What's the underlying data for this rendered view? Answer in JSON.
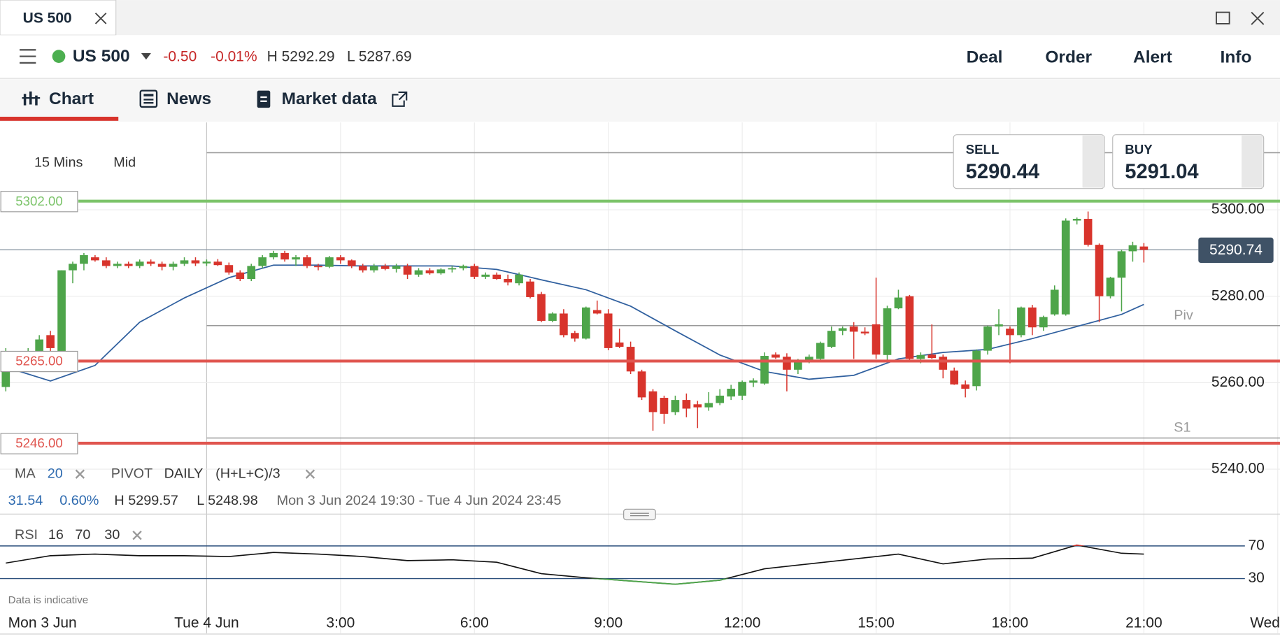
{
  "window_tab": {
    "title": "US 500"
  },
  "instrument": {
    "name": "US 500",
    "change": "-0.50",
    "change_pct": "-0.01%",
    "high": "H 5292.29",
    "low": "L 5287.69"
  },
  "actions": [
    "Deal",
    "Order",
    "Alert",
    "Info"
  ],
  "tabs": [
    "Chart",
    "News",
    "Market data"
  ],
  "chart_controls": {
    "interval": "15 Mins",
    "price_type": "Mid"
  },
  "quote": {
    "sell_label": "SELL",
    "sell": "5290.44",
    "buy_label": "BUY",
    "buy": "5291.04"
  },
  "indicators": {
    "ma_label": "MA",
    "ma_period": "20",
    "pivot_label": "PIVOT",
    "pivot_period": "DAILY",
    "pivot_formula": "(H+L+C)/3"
  },
  "stats": {
    "change": "31.54",
    "change_pct": "0.60%",
    "high": "H 5299.57",
    "low": "L 5248.98",
    "range": "Mon 3 Jun 2024 19:30 - Tue 4 Jun 2024 23:45"
  },
  "rsi_header": {
    "label": "RSI",
    "period": "16",
    "upper": "70",
    "lower": "30"
  },
  "footnote": "Data is indicative",
  "chart_data": {
    "type": "candlestick",
    "up_color": "#4ea54a",
    "down_color": "#d8342c",
    "xlim": [
      -4.63,
      24.05
    ],
    "xticks": [
      {
        "value": 0,
        "label": "Tue 4 Jun"
      },
      {
        "value": 3,
        "label": "3:00"
      },
      {
        "value": 6,
        "label": "6:00"
      },
      {
        "value": 9,
        "label": "9:00"
      },
      {
        "value": 12,
        "label": "12:00"
      },
      {
        "value": 15,
        "label": "15:00"
      },
      {
        "value": 18,
        "label": "18:00"
      },
      {
        "value": 21,
        "label": "21:00"
      },
      {
        "value": 24,
        "label": "Wed"
      }
    ],
    "left_date_label": "Mon 3 Jun",
    "ylim": [
      5229.6,
      5320.2
    ],
    "yticks": [
      {
        "value": 5240,
        "label": "5240.00"
      },
      {
        "value": 5260,
        "label": "5260.00"
      },
      {
        "value": 5280,
        "label": "5280.00"
      },
      {
        "value": 5300,
        "label": "5300.00"
      }
    ],
    "grid": true,
    "levels": [
      {
        "value": 5302,
        "label": "5302.00",
        "color": "#7cc46a"
      },
      {
        "value": 5265,
        "label": "5265.00",
        "color": "#e0554f"
      },
      {
        "value": 5246,
        "label": "5246.00",
        "color": "#e0554f"
      }
    ],
    "pivot_lines": [
      {
        "value": 5313.2
      },
      {
        "value": 5273.2,
        "label": "Piv"
      },
      {
        "value": 5247.2,
        "label": "S1"
      }
    ],
    "last_price": {
      "value": 5290.74,
      "label": "5290.74"
    },
    "candles": [
      {
        "t": -4.5,
        "o": 5259,
        "h": 5268,
        "l": 5258,
        "c": 5265
      },
      {
        "t": -4.25,
        "o": 5265,
        "h": 5267,
        "l": 5264,
        "c": 5265.5
      },
      {
        "t": -4,
        "o": 5265.5,
        "h": 5268,
        "l": 5264,
        "c": 5267
      },
      {
        "t": -3.75,
        "o": 5267,
        "h": 5271,
        "l": 5266,
        "c": 5270
      },
      {
        "t": -3.5,
        "o": 5271,
        "h": 5272,
        "l": 5266,
        "c": 5268
      },
      {
        "t": -3.25,
        "o": 5266,
        "h": 5286,
        "l": 5265,
        "c": 5286
      },
      {
        "t": -3,
        "o": 5286,
        "h": 5288,
        "l": 5283,
        "c": 5287.5
      },
      {
        "t": -2.75,
        "o": 5287.5,
        "h": 5290,
        "l": 5286,
        "c": 5289.5
      },
      {
        "t": -2.5,
        "o": 5289,
        "h": 5289.5,
        "l": 5288,
        "c": 5288.3
      },
      {
        "t": -2.25,
        "o": 5288.3,
        "h": 5289,
        "l": 5286.5,
        "c": 5287
      },
      {
        "t": -2,
        "o": 5287,
        "h": 5288,
        "l": 5286.5,
        "c": 5287.5
      },
      {
        "t": -1.75,
        "o": 5287.5,
        "h": 5288,
        "l": 5286.5,
        "c": 5287
      },
      {
        "t": -1.5,
        "o": 5287,
        "h": 5288.5,
        "l": 5286.5,
        "c": 5288
      },
      {
        "t": -1.25,
        "o": 5288,
        "h": 5288.5,
        "l": 5287,
        "c": 5287.5
      },
      {
        "t": -1,
        "o": 5287.5,
        "h": 5288,
        "l": 5286,
        "c": 5286.8
      },
      {
        "t": -0.75,
        "o": 5286.8,
        "h": 5288,
        "l": 5286,
        "c": 5287.5
      },
      {
        "t": -0.5,
        "o": 5287.5,
        "h": 5289,
        "l": 5287,
        "c": 5288.3
      },
      {
        "t": -0.25,
        "o": 5288.3,
        "h": 5289,
        "l": 5287,
        "c": 5287.6
      },
      {
        "t": 0,
        "o": 5287.6,
        "h": 5288.5,
        "l": 5287,
        "c": 5288
      },
      {
        "t": 0.25,
        "o": 5288,
        "h": 5288.6,
        "l": 5287,
        "c": 5287.2
      },
      {
        "t": 0.5,
        "o": 5287.2,
        "h": 5287.8,
        "l": 5285,
        "c": 5285.5
      },
      {
        "t": 0.75,
        "o": 5285.5,
        "h": 5286,
        "l": 5283.5,
        "c": 5284
      },
      {
        "t": 1,
        "o": 5284,
        "h": 5287.5,
        "l": 5283.5,
        "c": 5287
      },
      {
        "t": 1.25,
        "o": 5287,
        "h": 5289.5,
        "l": 5286.5,
        "c": 5289
      },
      {
        "t": 1.5,
        "o": 5289,
        "h": 5290.5,
        "l": 5288.5,
        "c": 5290
      },
      {
        "t": 1.75,
        "o": 5290,
        "h": 5290.5,
        "l": 5288,
        "c": 5288.5
      },
      {
        "t": 2,
        "o": 5288.5,
        "h": 5289.5,
        "l": 5287,
        "c": 5289
      },
      {
        "t": 2.25,
        "o": 5289,
        "h": 5289.5,
        "l": 5286.5,
        "c": 5287
      },
      {
        "t": 2.5,
        "o": 5287,
        "h": 5287.5,
        "l": 5286,
        "c": 5286.8
      },
      {
        "t": 2.75,
        "o": 5286.8,
        "h": 5289.3,
        "l": 5286.5,
        "c": 5289
      },
      {
        "t": 3,
        "o": 5289,
        "h": 5289.5,
        "l": 5287.5,
        "c": 5288.3
      },
      {
        "t": 3.25,
        "o": 5288.3,
        "h": 5288.5,
        "l": 5286.5,
        "c": 5287
      },
      {
        "t": 3.5,
        "o": 5287,
        "h": 5287.5,
        "l": 5285.5,
        "c": 5286
      },
      {
        "t": 3.75,
        "o": 5286,
        "h": 5287.5,
        "l": 5285.5,
        "c": 5287
      },
      {
        "t": 4,
        "o": 5287,
        "h": 5287.5,
        "l": 5286,
        "c": 5286.3
      },
      {
        "t": 4.25,
        "o": 5286.3,
        "h": 5287.5,
        "l": 5285.5,
        "c": 5287
      },
      {
        "t": 4.5,
        "o": 5287,
        "h": 5287.5,
        "l": 5284,
        "c": 5285
      },
      {
        "t": 4.75,
        "o": 5285,
        "h": 5286.5,
        "l": 5284.5,
        "c": 5286
      },
      {
        "t": 5,
        "o": 5286,
        "h": 5286.5,
        "l": 5285,
        "c": 5285.3
      },
      {
        "t": 5.25,
        "o": 5285.3,
        "h": 5286.5,
        "l": 5285,
        "c": 5286.2
      },
      {
        "t": 5.5,
        "o": 5286.2,
        "h": 5287,
        "l": 5285.5,
        "c": 5286.5
      },
      {
        "t": 5.75,
        "o": 5286.5,
        "h": 5287.3,
        "l": 5286,
        "c": 5287
      },
      {
        "t": 6,
        "o": 5287,
        "h": 5287.5,
        "l": 5284,
        "c": 5284.5
      },
      {
        "t": 6.25,
        "o": 5284.5,
        "h": 5285.5,
        "l": 5284,
        "c": 5285
      },
      {
        "t": 6.5,
        "o": 5285,
        "h": 5285.5,
        "l": 5283.8,
        "c": 5284
      },
      {
        "t": 6.75,
        "o": 5284,
        "h": 5285,
        "l": 5282.5,
        "c": 5283.2
      },
      {
        "t": 7,
        "o": 5283,
        "h": 5285.5,
        "l": 5282.5,
        "c": 5285
      },
      {
        "t": 7.25,
        "o": 5283.4,
        "h": 5284,
        "l": 5279.5,
        "c": 5279.8
      },
      {
        "t": 7.5,
        "o": 5280.5,
        "h": 5281,
        "l": 5274,
        "c": 5274.3
      },
      {
        "t": 7.75,
        "o": 5274.3,
        "h": 5276.3,
        "l": 5274,
        "c": 5276
      },
      {
        "t": 8,
        "o": 5276,
        "h": 5277,
        "l": 5270.5,
        "c": 5271
      },
      {
        "t": 8.25,
        "o": 5271.5,
        "h": 5272,
        "l": 5269.5,
        "c": 5270.2
      },
      {
        "t": 8.5,
        "o": 5270.2,
        "h": 5277.6,
        "l": 5270,
        "c": 5277.4
      },
      {
        "t": 8.75,
        "o": 5276.8,
        "h": 5279,
        "l": 5275.8,
        "c": 5276
      },
      {
        "t": 9,
        "o": 5276,
        "h": 5277,
        "l": 5267.5,
        "c": 5268
      },
      {
        "t": 9.25,
        "o": 5269.3,
        "h": 5272.5,
        "l": 5268,
        "c": 5268.3
      },
      {
        "t": 9.5,
        "o": 5268.3,
        "h": 5269.5,
        "l": 5262,
        "c": 5262.6
      },
      {
        "t": 9.75,
        "o": 5262.6,
        "h": 5263,
        "l": 5256,
        "c": 5256.6
      },
      {
        "t": 10,
        "o": 5258,
        "h": 5258.5,
        "l": 5248.9,
        "c": 5253.2
      },
      {
        "t": 10.25,
        "o": 5256.5,
        "h": 5257,
        "l": 5250.5,
        "c": 5252.8
      },
      {
        "t": 10.5,
        "o": 5253.2,
        "h": 5257,
        "l": 5252.5,
        "c": 5256
      },
      {
        "t": 10.75,
        "o": 5256,
        "h": 5257.5,
        "l": 5252,
        "c": 5254
      },
      {
        "t": 11,
        "o": 5255,
        "h": 5255.8,
        "l": 5249.5,
        "c": 5254.3
      },
      {
        "t": 11.25,
        "o": 5254.3,
        "h": 5257.8,
        "l": 5253.5,
        "c": 5255.3
      },
      {
        "t": 11.5,
        "o": 5255.3,
        "h": 5258.5,
        "l": 5254.8,
        "c": 5257
      },
      {
        "t": 11.75,
        "o": 5256.8,
        "h": 5259.5,
        "l": 5256,
        "c": 5258.6
      },
      {
        "t": 12,
        "o": 5257,
        "h": 5260.5,
        "l": 5256,
        "c": 5260.2
      },
      {
        "t": 12.25,
        "o": 5260,
        "h": 5261,
        "l": 5259,
        "c": 5260.5
      },
      {
        "t": 12.5,
        "o": 5259.8,
        "h": 5267,
        "l": 5259.5,
        "c": 5266.2
      },
      {
        "t": 12.75,
        "o": 5266.5,
        "h": 5267,
        "l": 5265.5,
        "c": 5265.8
      },
      {
        "t": 13,
        "o": 5266,
        "h": 5266.8,
        "l": 5258,
        "c": 5263
      },
      {
        "t": 13.25,
        "o": 5263,
        "h": 5265.5,
        "l": 5262,
        "c": 5265
      },
      {
        "t": 13.5,
        "o": 5265,
        "h": 5266.5,
        "l": 5264.5,
        "c": 5266
      },
      {
        "t": 13.75,
        "o": 5265.5,
        "h": 5269.5,
        "l": 5265,
        "c": 5269.2
      },
      {
        "t": 14,
        "o": 5268.3,
        "h": 5273,
        "l": 5268,
        "c": 5272
      },
      {
        "t": 14.25,
        "o": 5272,
        "h": 5273,
        "l": 5271,
        "c": 5272.6
      },
      {
        "t": 14.5,
        "o": 5273,
        "h": 5274,
        "l": 5265.5,
        "c": 5271.8
      },
      {
        "t": 14.75,
        "o": 5271.8,
        "h": 5272.8,
        "l": 5271,
        "c": 5271.4
      },
      {
        "t": 15,
        "o": 5273.5,
        "h": 5284.3,
        "l": 5265.5,
        "c": 5266.5
      },
      {
        "t": 15.25,
        "o": 5266.4,
        "h": 5277.8,
        "l": 5265,
        "c": 5277.2
      },
      {
        "t": 15.5,
        "o": 5277.2,
        "h": 5281.5,
        "l": 5277,
        "c": 5279.7
      },
      {
        "t": 15.75,
        "o": 5280,
        "h": 5280.3,
        "l": 5265,
        "c": 5265.5
      },
      {
        "t": 16,
        "o": 5265.5,
        "h": 5267,
        "l": 5264.5,
        "c": 5266.4
      },
      {
        "t": 16.25,
        "o": 5266.5,
        "h": 5273.5,
        "l": 5265.5,
        "c": 5265.7
      },
      {
        "t": 16.5,
        "o": 5266,
        "h": 5266.5,
        "l": 5261,
        "c": 5263
      },
      {
        "t": 16.75,
        "o": 5262.8,
        "h": 5263.5,
        "l": 5259.5,
        "c": 5259.6
      },
      {
        "t": 17,
        "o": 5259.6,
        "h": 5260.5,
        "l": 5256.6,
        "c": 5258.6
      },
      {
        "t": 17.25,
        "o": 5259.2,
        "h": 5267.7,
        "l": 5258.2,
        "c": 5267.4
      },
      {
        "t": 17.5,
        "o": 5267.4,
        "h": 5273.2,
        "l": 5266.5,
        "c": 5273
      },
      {
        "t": 17.75,
        "o": 5273,
        "h": 5277,
        "l": 5271,
        "c": 5273.5
      },
      {
        "t": 18,
        "o": 5272.5,
        "h": 5273,
        "l": 5264.5,
        "c": 5271
      },
      {
        "t": 18.25,
        "o": 5271,
        "h": 5277.6,
        "l": 5270.5,
        "c": 5277.4
      },
      {
        "t": 18.5,
        "o": 5277.4,
        "h": 5278,
        "l": 5271,
        "c": 5272.8
      },
      {
        "t": 18.75,
        "o": 5272.8,
        "h": 5275.5,
        "l": 5272,
        "c": 5275.2
      },
      {
        "t": 19,
        "o": 5275.8,
        "h": 5282.5,
        "l": 5275.5,
        "c": 5281.5
      },
      {
        "t": 19.25,
        "o": 5275.8,
        "h": 5298,
        "l": 5275.5,
        "c": 5297.5
      },
      {
        "t": 19.5,
        "o": 5297.5,
        "h": 5298.2,
        "l": 5296.6,
        "c": 5297.9
      },
      {
        "t": 19.75,
        "o": 5297.9,
        "h": 5299.6,
        "l": 5291.5,
        "c": 5291.9
      },
      {
        "t": 20,
        "o": 5291.9,
        "h": 5292.2,
        "l": 5274,
        "c": 5280
      },
      {
        "t": 20.25,
        "o": 5280,
        "h": 5284.5,
        "l": 5279.5,
        "c": 5284.3
      },
      {
        "t": 20.5,
        "o": 5284.3,
        "h": 5290.8,
        "l": 5276.5,
        "c": 5290.4
      },
      {
        "t": 20.75,
        "o": 5290.4,
        "h": 5292.6,
        "l": 5288,
        "c": 5291.8
      },
      {
        "t": 21,
        "o": 5291.5,
        "h": 5292.3,
        "l": 5287.8,
        "c": 5290.74
      }
    ],
    "ma": {
      "color": "#30609f",
      "x": [
        -4.5,
        -3.5,
        -2.5,
        -1.5,
        -0.5,
        0.5,
        1.5,
        2.5,
        3.5,
        4.5,
        5.5,
        6.5,
        7.5,
        8.5,
        9.5,
        10.5,
        11.5,
        12.5,
        13.5,
        14.5,
        15.5,
        16.5,
        17.5,
        18.5,
        19.5,
        20.5,
        21
      ],
      "values": [
        5263.6,
        5260.4,
        5264,
        5274,
        5279.6,
        5284.3,
        5287.2,
        5287.2,
        5287,
        5287,
        5287,
        5286.2,
        5283.8,
        5281.5,
        5277.7,
        5272,
        5266.4,
        5262.6,
        5260.8,
        5261.7,
        5265.5,
        5267,
        5267.7,
        5270.2,
        5273,
        5275.8,
        5278.1
      ]
    },
    "rsi": {
      "ylim": [
        -5,
        95
      ],
      "yticks": [
        70,
        30
      ],
      "x": [
        -4.5,
        -3.5,
        -2.5,
        -1.5,
        -0.5,
        0.5,
        1.5,
        2.5,
        3.5,
        4.5,
        5.5,
        6.5,
        7.5,
        8.5,
        9.5,
        10.5,
        11.5,
        12.5,
        13.5,
        14.5,
        15.5,
        16.5,
        17.5,
        18.5,
        19.5,
        20.5,
        21
      ],
      "values": [
        49,
        58,
        60,
        58,
        58,
        57,
        62,
        60,
        57,
        52,
        53,
        50,
        36,
        31,
        27,
        23,
        28,
        42,
        48,
        54,
        60,
        48,
        54,
        55,
        71,
        61,
        60
      ]
    }
  }
}
